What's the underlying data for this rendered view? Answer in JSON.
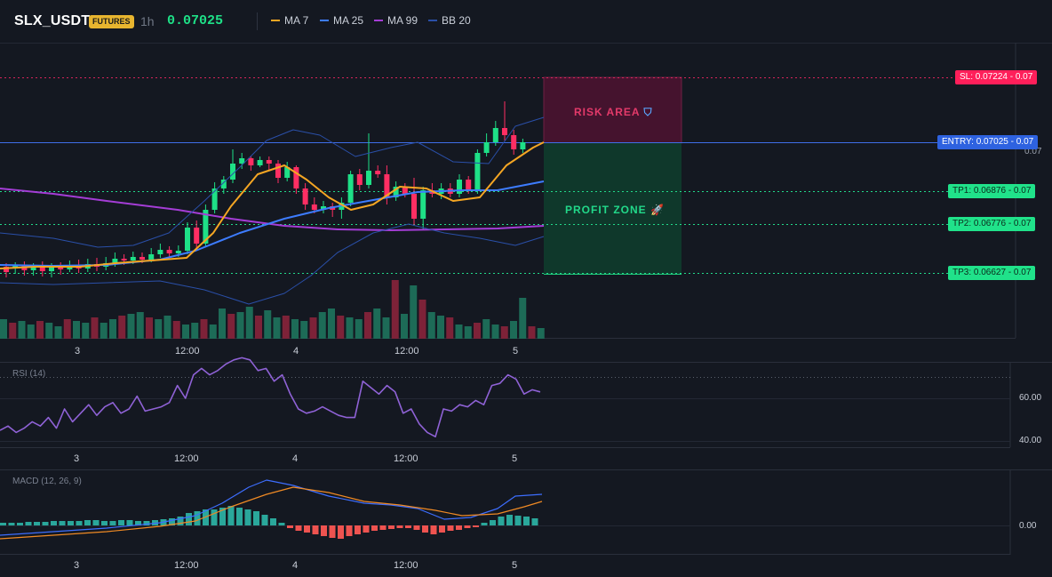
{
  "header": {
    "symbol": "SLX_USDT",
    "badge": "FUTURES",
    "timeframe": "1h",
    "price": "0.07025",
    "legend": [
      {
        "label": "MA 7",
        "color": "#f5a623"
      },
      {
        "label": "MA 25",
        "color": "#3d7cff"
      },
      {
        "label": "MA 99",
        "color": "#a43dd6"
      },
      {
        "label": "BB 20",
        "color": "#2a4fa8"
      }
    ]
  },
  "levels": {
    "sl": "SL: 0.07224 - 0.07",
    "entry": "ENTRY: 0.07025 - 0.07",
    "tp1": "TP1: 0.06876 - 0.07",
    "tp2": "TP2: 0.06776 - 0.07",
    "tp3": "TP3: 0.06627 - 0.07",
    "hidden_tick": "0.07"
  },
  "zones": {
    "risk": "RISK AREA",
    "risk_icon": "shield-icon",
    "profit": "PROFIT ZONE",
    "profit_icon": "rocket-icon"
  },
  "x_axis": [
    "3",
    "12:00",
    "4",
    "12:00",
    "5"
  ],
  "rsi": {
    "title": "RSI (14)",
    "y_labels": [
      "60.00",
      "40.00"
    ],
    "values": [
      45,
      47,
      44,
      46,
      49,
      47,
      51,
      46,
      55,
      49,
      53,
      57,
      52,
      56,
      58,
      53,
      55,
      61,
      54,
      55,
      56,
      58,
      66,
      60,
      71,
      74,
      71,
      73,
      76,
      78,
      79,
      78,
      73,
      74,
      68,
      71,
      62,
      55,
      53,
      54,
      56,
      54,
      52,
      51,
      51,
      68,
      65,
      62,
      66,
      63,
      53,
      55,
      48,
      44,
      42,
      55,
      54,
      57,
      56,
      59,
      57,
      66,
      67,
      71,
      69,
      62,
      64,
      63
    ],
    "overbought": 70
  },
  "macd": {
    "title": "MACD (12, 26, 9)",
    "y_labels": [
      "0.00"
    ]
  },
  "colors": {
    "up": "#1ee087",
    "down": "#ff2e63",
    "bg": "#141821",
    "grid": "#232834",
    "rsi_line": "#8f62d6",
    "macd_line": "#3d6eff",
    "signal_line": "#f08a24",
    "hist_up": "#2aa79b",
    "hist_down": "#ef5350"
  }
}
